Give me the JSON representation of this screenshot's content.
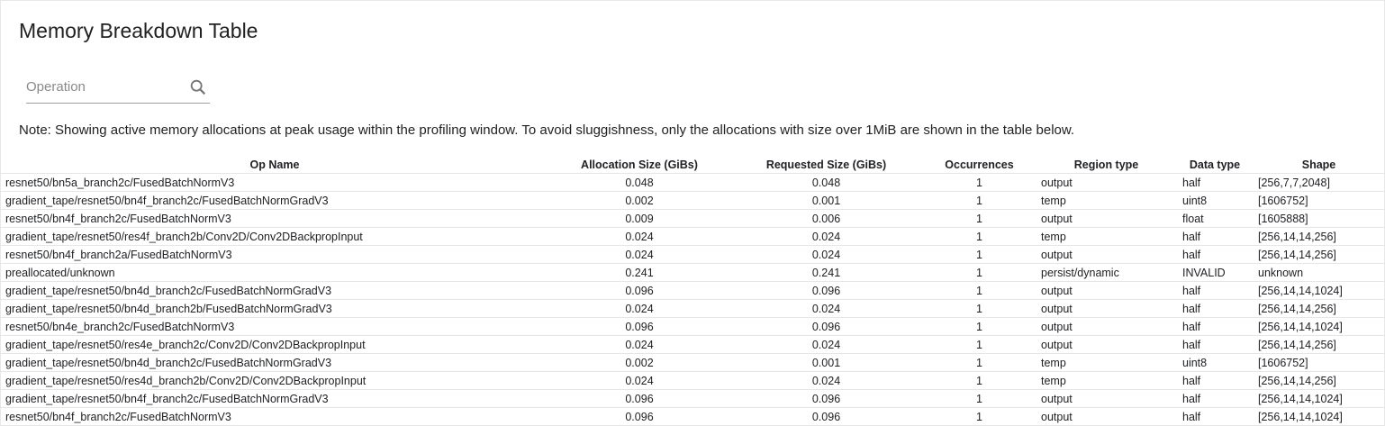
{
  "title": "Memory Breakdown Table",
  "search": {
    "placeholder": "Operation",
    "value": "",
    "icon": "search-icon"
  },
  "note": "Note: Showing active memory allocations at peak usage within the profiling window. To avoid sluggishness, only the allocations with size over 1MiB are shown in the table below.",
  "table": {
    "headers": [
      "Op Name",
      "Allocation Size (GiBs)",
      "Requested Size (GiBs)",
      "Occurrences",
      "Region type",
      "Data type",
      "Shape"
    ],
    "rows": [
      [
        "resnet50/bn5a_branch2c/FusedBatchNormV3",
        "0.048",
        "0.048",
        "1",
        "output",
        "half",
        "[256,7,7,2048]"
      ],
      [
        "gradient_tape/resnet50/bn4f_branch2c/FusedBatchNormGradV3",
        "0.002",
        "0.001",
        "1",
        "temp",
        "uint8",
        "[1606752]"
      ],
      [
        "resnet50/bn4f_branch2c/FusedBatchNormV3",
        "0.009",
        "0.006",
        "1",
        "output",
        "float",
        "[1605888]"
      ],
      [
        "gradient_tape/resnet50/res4f_branch2b/Conv2D/Conv2DBackpropInput",
        "0.024",
        "0.024",
        "1",
        "temp",
        "half",
        "[256,14,14,256]"
      ],
      [
        "resnet50/bn4f_branch2a/FusedBatchNormV3",
        "0.024",
        "0.024",
        "1",
        "output",
        "half",
        "[256,14,14,256]"
      ],
      [
        "preallocated/unknown",
        "0.241",
        "0.241",
        "1",
        "persist/dynamic",
        "INVALID",
        "unknown"
      ],
      [
        "gradient_tape/resnet50/bn4d_branch2c/FusedBatchNormGradV3",
        "0.096",
        "0.096",
        "1",
        "output",
        "half",
        "[256,14,14,1024]"
      ],
      [
        "gradient_tape/resnet50/bn4d_branch2b/FusedBatchNormGradV3",
        "0.024",
        "0.024",
        "1",
        "output",
        "half",
        "[256,14,14,256]"
      ],
      [
        "resnet50/bn4e_branch2c/FusedBatchNormV3",
        "0.096",
        "0.096",
        "1",
        "output",
        "half",
        "[256,14,14,1024]"
      ],
      [
        "gradient_tape/resnet50/res4e_branch2c/Conv2D/Conv2DBackpropInput",
        "0.024",
        "0.024",
        "1",
        "output",
        "half",
        "[256,14,14,256]"
      ],
      [
        "gradient_tape/resnet50/bn4d_branch2c/FusedBatchNormGradV3",
        "0.002",
        "0.001",
        "1",
        "temp",
        "uint8",
        "[1606752]"
      ],
      [
        "gradient_tape/resnet50/res4d_branch2b/Conv2D/Conv2DBackpropInput",
        "0.024",
        "0.024",
        "1",
        "temp",
        "half",
        "[256,14,14,256]"
      ],
      [
        "gradient_tape/resnet50/bn4f_branch2c/FusedBatchNormGradV3",
        "0.096",
        "0.096",
        "1",
        "output",
        "half",
        "[256,14,14,1024]"
      ],
      [
        "resnet50/bn4f_branch2c/FusedBatchNormV3",
        "0.096",
        "0.096",
        "1",
        "output",
        "half",
        "[256,14,14,1024]"
      ]
    ]
  }
}
